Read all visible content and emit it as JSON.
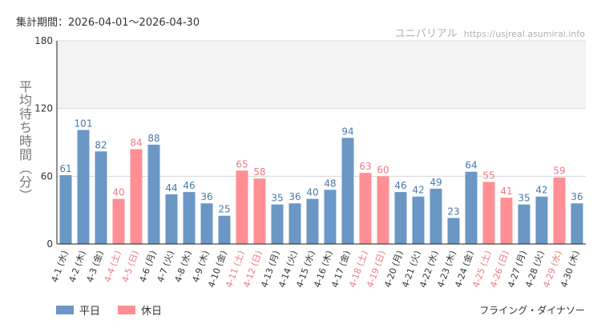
{
  "header": {
    "period": "集計期間：2026-04-01〜2026-04-30",
    "site_name": "ユニバリアル",
    "site_url": "https://usjreal.asumirai.info"
  },
  "footer": {
    "attraction": "フライング・ダイナソー"
  },
  "colors": {
    "weekday": "#6a97c6",
    "holiday": "#ff8f94",
    "holiday_text": "#f07880",
    "grid": "#d8d8d8",
    "band": "#f3f3f3",
    "axis": "#222222"
  },
  "chart_data": {
    "type": "bar",
    "ylabel": "平均待ち時間（分）",
    "ylim": [
      0,
      180
    ],
    "yticks": [
      0,
      60,
      120,
      180
    ],
    "grid": true,
    "legend_position": "bottom-left",
    "legend": [
      {
        "name": "平日",
        "key": "weekday"
      },
      {
        "name": "休日",
        "key": "holiday"
      }
    ],
    "categories": [
      "4-1 (水)",
      "4-2 (木)",
      "4-3 (金)",
      "4-4 (土)",
      "4-5 (日)",
      "4-6 (月)",
      "4-7 (火)",
      "4-8 (水)",
      "4-9 (木)",
      "4-10 (金)",
      "4-11 (土)",
      "4-12 (日)",
      "4-13 (月)",
      "4-14 (火)",
      "4-15 (水)",
      "4-16 (木)",
      "4-17 (金)",
      "4-18 (土)",
      "4-19 (日)",
      "4-20 (月)",
      "4-21 (火)",
      "4-22 (水)",
      "4-23 (木)",
      "4-24 (金)",
      "4-25 (土)",
      "4-26 (日)",
      "4-27 (月)",
      "4-28 (火)",
      "4-29 (水)",
      "4-30 (木)"
    ],
    "values": [
      61,
      101,
      82,
      40,
      84,
      88,
      44,
      46,
      36,
      25,
      65,
      58,
      35,
      36,
      40,
      48,
      94,
      63,
      60,
      46,
      42,
      49,
      23,
      64,
      55,
      41,
      35,
      42,
      59,
      36
    ],
    "day_type": [
      "weekday",
      "weekday",
      "weekday",
      "holiday",
      "holiday",
      "weekday",
      "weekday",
      "weekday",
      "weekday",
      "weekday",
      "holiday",
      "holiday",
      "weekday",
      "weekday",
      "weekday",
      "weekday",
      "weekday",
      "holiday",
      "holiday",
      "weekday",
      "weekday",
      "weekday",
      "weekday",
      "weekday",
      "holiday",
      "holiday",
      "weekday",
      "weekday",
      "holiday",
      "weekday"
    ]
  }
}
